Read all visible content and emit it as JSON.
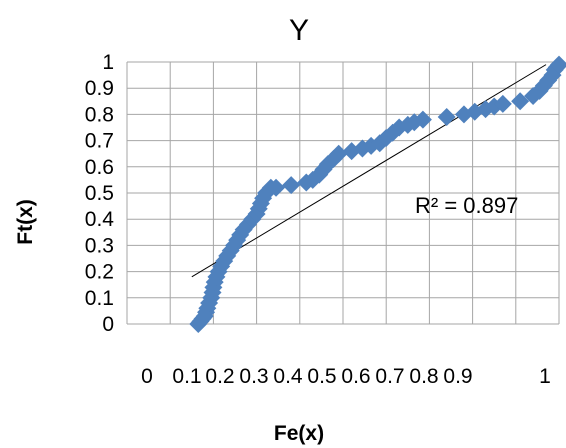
{
  "chart_data": {
    "type": "scatter",
    "title": "Y",
    "xlabel": "Fe(x)",
    "ylabel": "Ft(x)",
    "xlim": [
      0,
      1
    ],
    "ylim": [
      0,
      1
    ],
    "x_ticks": [
      "0",
      "0.1",
      "0.2",
      "0.3",
      "0.4",
      "0.5",
      "0.6",
      "0.7",
      "0.8",
      "0.9",
      "1"
    ],
    "y_ticks": [
      "0",
      "0.1",
      "0.2",
      "0.3",
      "0.4",
      "0.5",
      "0.6",
      "0.7",
      "0.8",
      "0.9",
      "1"
    ],
    "grid": true,
    "legend": "none",
    "marker": "diamond",
    "series_color": "#4f81bd",
    "trendline_color": "#000000",
    "points": [
      [
        0.165,
        0.0
      ],
      [
        0.17,
        0.01
      ],
      [
        0.175,
        0.02
      ],
      [
        0.18,
        0.03
      ],
      [
        0.183,
        0.045
      ],
      [
        0.186,
        0.06
      ],
      [
        0.19,
        0.08
      ],
      [
        0.195,
        0.1
      ],
      [
        0.198,
        0.12
      ],
      [
        0.2,
        0.14
      ],
      [
        0.203,
        0.16
      ],
      [
        0.207,
        0.18
      ],
      [
        0.212,
        0.2
      ],
      [
        0.218,
        0.22
      ],
      [
        0.225,
        0.24
      ],
      [
        0.232,
        0.26
      ],
      [
        0.24,
        0.28
      ],
      [
        0.248,
        0.3
      ],
      [
        0.255,
        0.32
      ],
      [
        0.262,
        0.34
      ],
      [
        0.27,
        0.36
      ],
      [
        0.28,
        0.38
      ],
      [
        0.29,
        0.4
      ],
      [
        0.3,
        0.42
      ],
      [
        0.305,
        0.44
      ],
      [
        0.31,
        0.46
      ],
      [
        0.315,
        0.48
      ],
      [
        0.322,
        0.5
      ],
      [
        0.333,
        0.52
      ],
      [
        0.345,
        0.52
      ],
      [
        0.38,
        0.53
      ],
      [
        0.415,
        0.54
      ],
      [
        0.43,
        0.55
      ],
      [
        0.445,
        0.57
      ],
      [
        0.455,
        0.59
      ],
      [
        0.465,
        0.61
      ],
      [
        0.478,
        0.63
      ],
      [
        0.49,
        0.65
      ],
      [
        0.52,
        0.66
      ],
      [
        0.545,
        0.67
      ],
      [
        0.565,
        0.68
      ],
      [
        0.585,
        0.69
      ],
      [
        0.6,
        0.71
      ],
      [
        0.615,
        0.73
      ],
      [
        0.63,
        0.75
      ],
      [
        0.65,
        0.76
      ],
      [
        0.665,
        0.77
      ],
      [
        0.685,
        0.78
      ],
      [
        0.74,
        0.79
      ],
      [
        0.78,
        0.8
      ],
      [
        0.805,
        0.81
      ],
      [
        0.83,
        0.82
      ],
      [
        0.85,
        0.83
      ],
      [
        0.87,
        0.84
      ],
      [
        0.91,
        0.85
      ],
      [
        0.94,
        0.87
      ],
      [
        0.955,
        0.89
      ],
      [
        0.965,
        0.91
      ],
      [
        0.975,
        0.93
      ],
      [
        0.985,
        0.95
      ],
      [
        0.99,
        0.97
      ],
      [
        0.995,
        0.98
      ],
      [
        1.0,
        0.99
      ]
    ],
    "trendline": {
      "type": "linear",
      "x": [
        0.15,
        0.97
      ],
      "y": [
        0.18,
        0.99
      ]
    },
    "annotation": "R² = 0.897"
  }
}
